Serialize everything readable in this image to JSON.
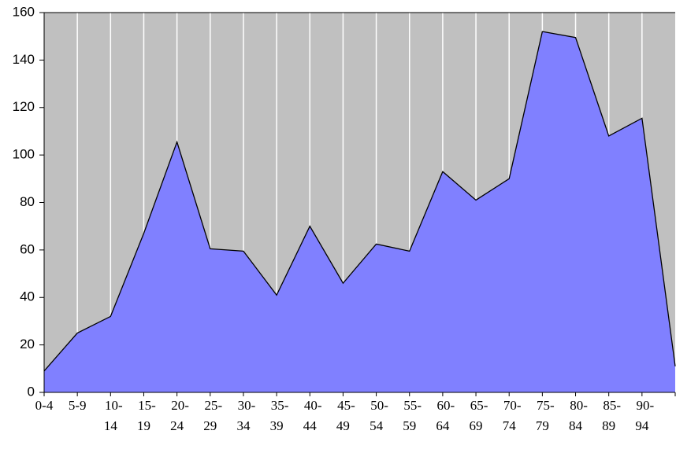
{
  "chart_data": {
    "type": "area",
    "categories": [
      "0-4",
      "5-9",
      "10-14",
      "15-19",
      "20-24",
      "25-29",
      "30-34",
      "35-39",
      "40-44",
      "45-49",
      "50-54",
      "55-59",
      "60-64",
      "65-69",
      "70-74",
      "75-79",
      "80-84",
      "85-89",
      "90-94",
      null
    ],
    "values": [
      9,
      25,
      32,
      67,
      105.5,
      60.5,
      59.5,
      41,
      70,
      46,
      62.5,
      59.5,
      93,
      81,
      90,
      152,
      149.5,
      108,
      115.5,
      11
    ],
    "color": "#8080ff",
    "ylim": [
      0,
      160
    ],
    "yticks": [
      0,
      20,
      40,
      60,
      80,
      100,
      120,
      140,
      160
    ],
    "grid": "x"
  }
}
